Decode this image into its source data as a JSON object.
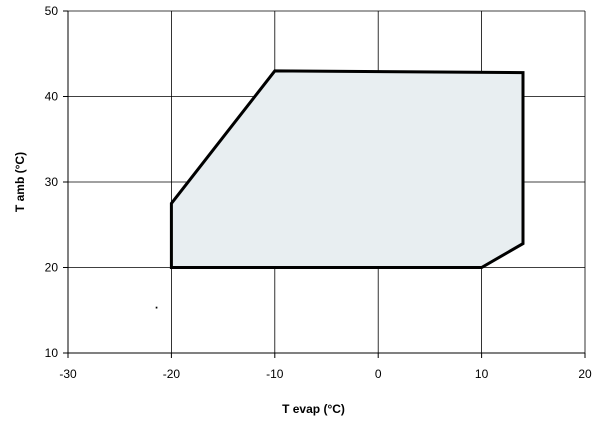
{
  "chart_data": {
    "type": "area",
    "title": "",
    "xlabel": "T evap (°C)",
    "ylabel": "T amb (°C)",
    "xlim": [
      -30,
      20
    ],
    "ylim": [
      10,
      50
    ],
    "x_ticks": [
      -30,
      -20,
      -10,
      0,
      10,
      20
    ],
    "y_ticks": [
      10,
      20,
      30,
      40,
      50
    ],
    "grid": true,
    "legend": "none",
    "colors": {
      "fill": "#e8eef1",
      "outline": "#000000",
      "grid": "#000000"
    },
    "series": [
      {
        "x": [
          -20,
          -20,
          -10,
          14,
          14,
          10,
          -20
        ],
        "y": [
          20,
          27.5,
          43,
          42.8,
          22.8,
          20,
          20
        ]
      }
    ],
    "annotations": [
      {
        "x": -21.4,
        "y": 15.3,
        "text": "·"
      }
    ]
  }
}
